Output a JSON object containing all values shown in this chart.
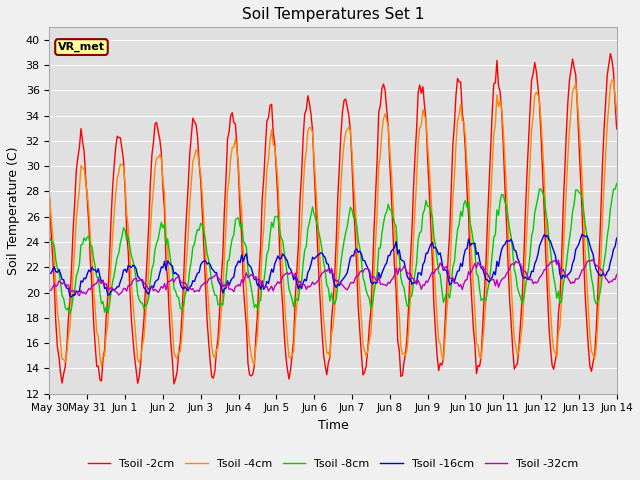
{
  "title": "Soil Temperatures Set 1",
  "xlabel": "Time",
  "ylabel": "Soil Temperature (C)",
  "ylim": [
    12,
    41
  ],
  "yticks": [
    12,
    14,
    16,
    18,
    20,
    22,
    24,
    26,
    28,
    30,
    32,
    34,
    36,
    38,
    40
  ],
  "plot_bg_color": "#e0e0e0",
  "fig_bg_color": "#f0f0f0",
  "grid_color": "#ffffff",
  "annotation_text": "VR_met",
  "annotation_box_color": "#ffff99",
  "annotation_border_color": "#8b0000",
  "series": {
    "Tsoil -2cm": {
      "color": "#ff0000",
      "lw": 1.0
    },
    "Tsoil -4cm": {
      "color": "#ff8800",
      "lw": 1.0
    },
    "Tsoil -8cm": {
      "color": "#00cc00",
      "lw": 1.0
    },
    "Tsoil -16cm": {
      "color": "#0000dd",
      "lw": 1.0
    },
    "Tsoil -32cm": {
      "color": "#bb00bb",
      "lw": 1.0
    }
  },
  "xtick_labels": [
    "May 30",
    "May 31",
    "Jun 1",
    "Jun 2",
    "Jun 3",
    "Jun 4",
    "Jun 5",
    "Jun 6",
    "Jun 7",
    "Jun 8",
    "Jun 9",
    "Jun 10",
    "Jun 11",
    "Jun 12",
    "Jun 13",
    "Jun 14"
  ]
}
